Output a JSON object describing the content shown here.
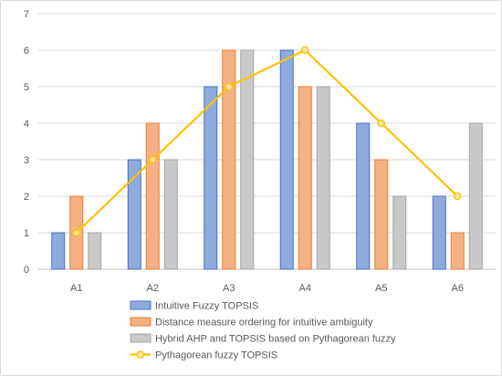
{
  "chart_data": {
    "type": "bar",
    "categories": [
      "A1",
      "A2",
      "A3",
      "A4",
      "A5",
      "A6"
    ],
    "ylim": [
      0,
      7
    ],
    "yticks": [
      0,
      1,
      2,
      3,
      4,
      5,
      6,
      7
    ],
    "grid": true,
    "legend_placement": "bottom",
    "series": [
      {
        "name": "Intuitive Fuzzy TOPSIS",
        "kind": "bar",
        "values": [
          1,
          3,
          5,
          6,
          4,
          2
        ],
        "fill": "#8faadc",
        "stroke": "#4472c4"
      },
      {
        "name": "Distance measure ordering for intuitive ambiguity",
        "kind": "bar",
        "values": [
          2,
          4,
          6,
          5,
          3,
          1
        ],
        "fill": "#f4b183",
        "stroke": "#ed7d31"
      },
      {
        "name": "Hybrid AHP and TOPSIS based on Pythagorean fuzzy",
        "kind": "bar",
        "values": [
          1,
          3,
          6,
          5,
          2,
          4
        ],
        "fill": "#c9c9c9",
        "stroke": "#a5a5a5"
      },
      {
        "name": "Pythagorean fuzzy TOPSIS",
        "kind": "line",
        "values": [
          1,
          3,
          5,
          6,
          4,
          2
        ],
        "fill": "#ffe699",
        "stroke": "#ffc000"
      }
    ]
  }
}
